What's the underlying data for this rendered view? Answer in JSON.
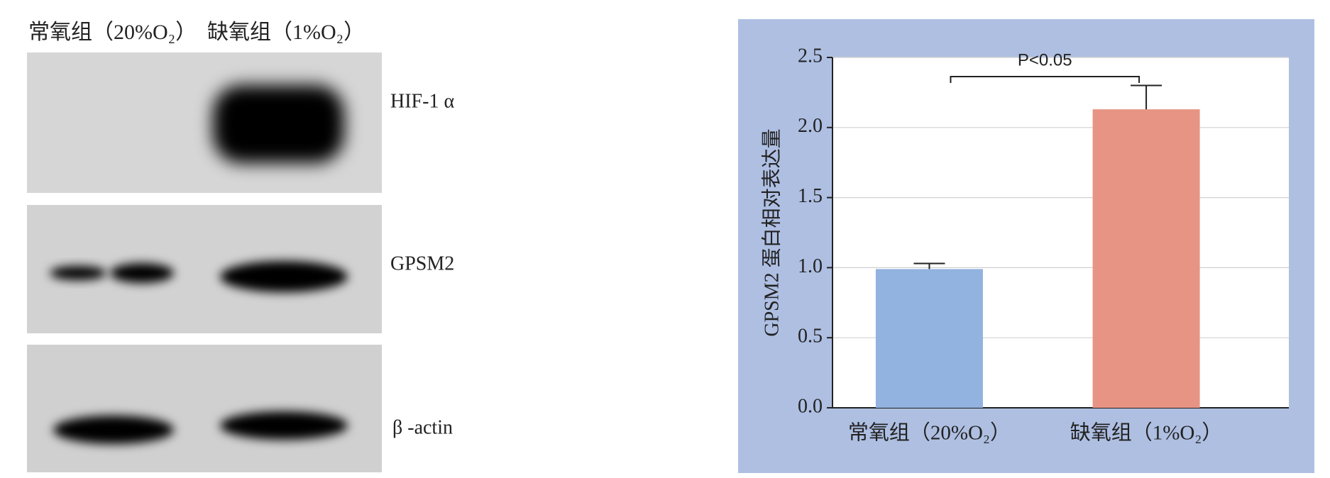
{
  "blot": {
    "groups": [
      "常氧组（20%O₂）",
      "缺氧组（1%O₂）"
    ],
    "labels": [
      "HIF-1 α",
      "GPSM2",
      "β -actin"
    ]
  },
  "chart_data": {
    "type": "bar",
    "ylabel": "GPSM2 蛋白相对表达量",
    "categories": [
      "常氧组（20%O₂）",
      "缺氧组（1%O₂）"
    ],
    "series": [
      {
        "values": [
          0.99,
          2.13
        ],
        "errors": [
          0.04,
          0.17
        ],
        "colors": [
          "#92b2df",
          "#e89484"
        ]
      }
    ],
    "ylim": [
      0,
      2.5
    ],
    "yticks": [
      {
        "value": 0,
        "label": "0.0"
      },
      {
        "value": 0.5,
        "label": "0.5"
      },
      {
        "value": 1,
        "label": "1.0"
      },
      {
        "value": 1.5,
        "label": "1.5"
      },
      {
        "value": 2,
        "label": "2.0"
      },
      {
        "value": 2.5,
        "label": "2.5"
      }
    ],
    "grid": true,
    "annotation": "P<0.05"
  }
}
